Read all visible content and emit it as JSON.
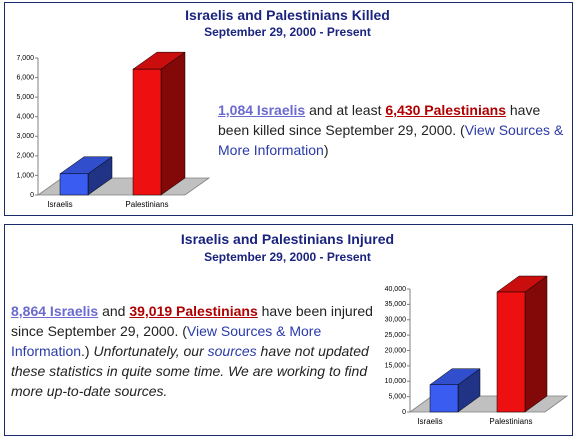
{
  "chart_data": [
    {
      "type": "bar3d",
      "title": "Israelis and Palestinians Killed",
      "subtitle": "September 29, 2000 - Present",
      "categories": [
        "Israelis",
        "Palestinians"
      ],
      "values": [
        1084,
        6430
      ],
      "colors": [
        "#3a5cf0",
        "#ee1010"
      ],
      "ylim": [
        0,
        7000
      ],
      "yticks": [
        0,
        {
          "value": 1000,
          "label": "1,000"
        },
        {
          "value": 2000,
          "label": "2,000"
        },
        {
          "value": 3000,
          "label": "3,000"
        },
        {
          "value": 4000,
          "label": "4,000"
        },
        {
          "value": 5000,
          "label": "5,000"
        },
        {
          "value": 6000,
          "label": "6,000"
        },
        {
          "value": 7000,
          "label": "7,000"
        }
      ]
    },
    {
      "type": "bar3d",
      "title": "Israelis and Palestinians Injured",
      "subtitle": "September 29, 2000 - Present",
      "categories": [
        "Israelis",
        "Palestinians"
      ],
      "values": [
        8864,
        39019
      ],
      "colors": [
        "#3a5cf0",
        "#ee1010"
      ],
      "ylim": [
        0,
        40000
      ],
      "yticks": [
        0,
        {
          "value": 5000,
          "label": "5,000"
        },
        {
          "value": 10000,
          "label": "10,000"
        },
        {
          "value": 15000,
          "label": "15,000"
        },
        {
          "value": 20000,
          "label": "20,000"
        },
        {
          "value": 25000,
          "label": "25,000"
        },
        {
          "value": 30000,
          "label": "30,000"
        },
        {
          "value": 35000,
          "label": "35,000"
        },
        {
          "value": 40000,
          "label": "40,000"
        }
      ]
    }
  ],
  "panels": [
    {
      "text": [
        "1,084 Israelis",
        " and at least ",
        "6,430 Palestinians",
        " have been killed since September 29, 2000. (",
        "View Sources & More Information",
        ")"
      ]
    },
    {
      "text": [
        "8,864 Israelis",
        " and ",
        "39,019 Palestinians",
        " have been injured since September 29, 2000. (",
        "View Sources & More Information",
        ".) ",
        "Unfortunately, our ",
        "sources",
        " have not updated these statistics in quite some time. We are working to find more up-to-date sources."
      ]
    }
  ]
}
